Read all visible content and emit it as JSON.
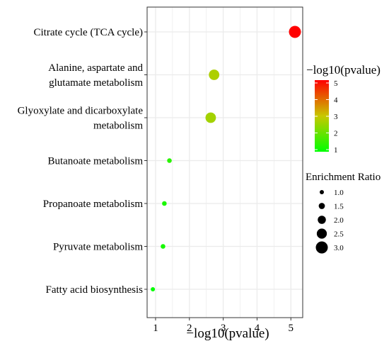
{
  "chart_data": {
    "type": "scatter",
    "title": "",
    "xlabel": "−log10(pvalue)",
    "ylabel": "",
    "xlim": [
      0.75,
      5.35
    ],
    "xticks": [
      1,
      2,
      3,
      4,
      5
    ],
    "grid": true,
    "categories": [
      "Citrate cycle (TCA cycle)",
      "Alanine, aspartate and glutamate metabolism",
      "Glyoxylate and dicarboxylate metabolism",
      "Butanoate metabolism",
      "Propanoate metabolism",
      "Pyruvate metabolism",
      "Fatty acid biosynthesis"
    ],
    "category_label_lines": [
      [
        "Citrate cycle (TCA cycle)"
      ],
      [
        "Alanine, aspartate and",
        "glutamate metabolism"
      ],
      [
        "Glyoxylate and dicarboxylate",
        "metabolism"
      ],
      [
        "Butanoate metabolism"
      ],
      [
        "Propanoate metabolism"
      ],
      [
        "Pyruvate metabolism"
      ],
      [
        "Fatty acid biosynthesis"
      ]
    ],
    "points": [
      {
        "pathway": "Citrate cycle (TCA cycle)",
        "neg_log10_pvalue": 5.12,
        "enrichment_ratio": 3.0
      },
      {
        "pathway": "Alanine, aspartate and glutamate metabolism",
        "neg_log10_pvalue": 2.73,
        "enrichment_ratio": 2.6
      },
      {
        "pathway": "Glyoxylate and dicarboxylate metabolism",
        "neg_log10_pvalue": 2.63,
        "enrichment_ratio": 2.6
      },
      {
        "pathway": "Butanoate metabolism",
        "neg_log10_pvalue": 1.41,
        "enrichment_ratio": 1.1
      },
      {
        "pathway": "Propanoate metabolism",
        "neg_log10_pvalue": 1.26,
        "enrichment_ratio": 1.1
      },
      {
        "pathway": "Pyruvate metabolism",
        "neg_log10_pvalue": 1.22,
        "enrichment_ratio": 1.1
      },
      {
        "pathway": "Fatty acid biosynthesis",
        "neg_log10_pvalue": 0.92,
        "enrichment_ratio": 1.0
      }
    ],
    "color_legend": {
      "title": "−log10(pvalue)",
      "ticks": [
        "5",
        "4",
        "3",
        "2",
        "1"
      ],
      "range": [
        1,
        5
      ],
      "colors": {
        "low": "#00ff00",
        "mid": "#c8c800",
        "high": "#ff0000"
      }
    },
    "size_legend": {
      "title": "Enrichment Ratio",
      "labels": [
        "1.0",
        "1.5",
        "2.0",
        "2.5",
        "3.0"
      ],
      "values": [
        1.0,
        1.5,
        2.0,
        2.5,
        3.0
      ]
    },
    "colors": {
      "grid": "#ebebeb",
      "panel_border": "#333333",
      "text": "#000000"
    }
  }
}
